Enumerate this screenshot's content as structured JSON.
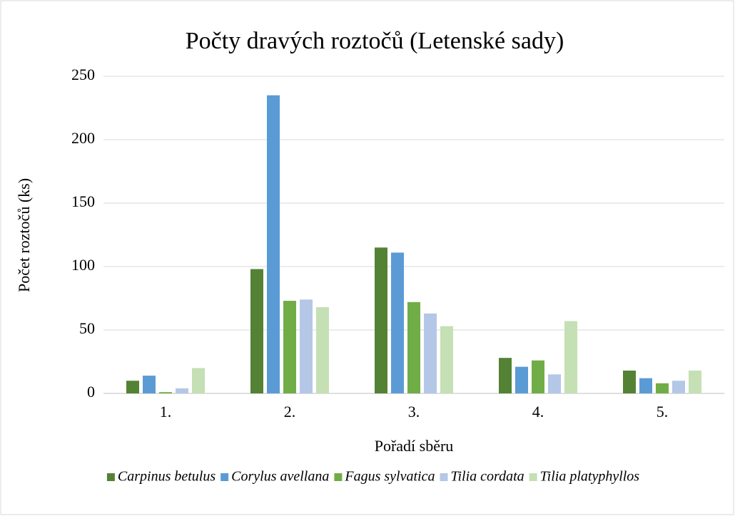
{
  "chart_data": {
    "type": "bar",
    "title": "Počty dravých roztočů (Letenské sady)",
    "x_label": "Pořadí sběru",
    "y_label": "Počet roztočů (ks)",
    "categories": [
      "1.",
      "2.",
      "3.",
      "4.",
      "5."
    ],
    "series": [
      {
        "name": "Carpinus betulus",
        "color": "#548235",
        "values": [
          10,
          98,
          115,
          28,
          18
        ]
      },
      {
        "name": "Corylus avellana",
        "color": "#5b9bd5",
        "values": [
          14,
          235,
          111,
          21,
          12
        ]
      },
      {
        "name": "Fagus sylvatica",
        "color": "#70ad47",
        "values": [
          1,
          73,
          72,
          26,
          8
        ]
      },
      {
        "name": "Tilia cordata",
        "color": "#b4c7e7",
        "values": [
          4,
          74,
          63,
          15,
          10
        ]
      },
      {
        "name": "Tilia platyphyllos",
        "color": "#c5e0b4",
        "values": [
          20,
          68,
          53,
          57,
          18
        ]
      }
    ],
    "ylim": [
      0,
      250
    ],
    "yticks": [
      0,
      50,
      100,
      150,
      200,
      250
    ],
    "grid": true,
    "legend": "bottom"
  }
}
